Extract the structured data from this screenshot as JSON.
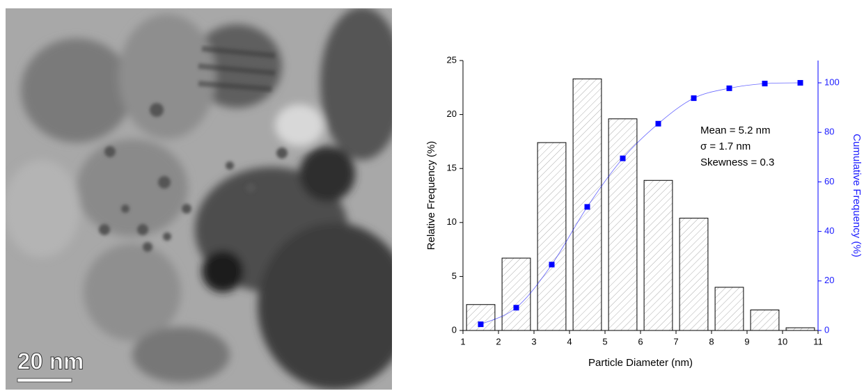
{
  "image": {
    "scale_bar_label": "20 nm"
  },
  "chart_data": {
    "type": "histogram",
    "x_label": "Particle Diameter (nm)",
    "y_label": "Relative Frequency (%)",
    "y2_label": "Cumulative Frequency (%)",
    "annotations": [
      "Mean = 5.2 nm",
      "σ = 1.7 nm",
      "Skewness = 0.3"
    ],
    "bins": [
      1,
      2,
      3,
      4,
      5,
      6,
      7,
      8,
      9,
      10,
      11
    ],
    "values": [
      2.4,
      6.7,
      17.4,
      23.3,
      19.6,
      13.9,
      10.4,
      4.0,
      1.9,
      0.25
    ],
    "color": "#000000",
    "overlay": {
      "type": "line",
      "x": [
        1.5,
        2.5,
        3.5,
        4.5,
        5.5,
        6.5,
        7.5,
        8.5,
        9.5,
        10.5
      ],
      "values": [
        2.5,
        9.2,
        26.6,
        49.9,
        69.5,
        83.5,
        93.8,
        97.8,
        99.7,
        100
      ],
      "color": "#0000ff",
      "axis": "y2"
    },
    "xlim": [
      1,
      11
    ],
    "xticks": [
      1,
      2,
      3,
      4,
      5,
      6,
      7,
      8,
      9,
      10,
      11
    ],
    "ylim": [
      0,
      25
    ],
    "yticks": [
      0,
      5,
      10,
      15,
      20,
      25
    ],
    "y2lim": [
      0,
      109
    ],
    "y2ticks": [
      0,
      20,
      40,
      60,
      80,
      100
    ],
    "grid": false
  }
}
